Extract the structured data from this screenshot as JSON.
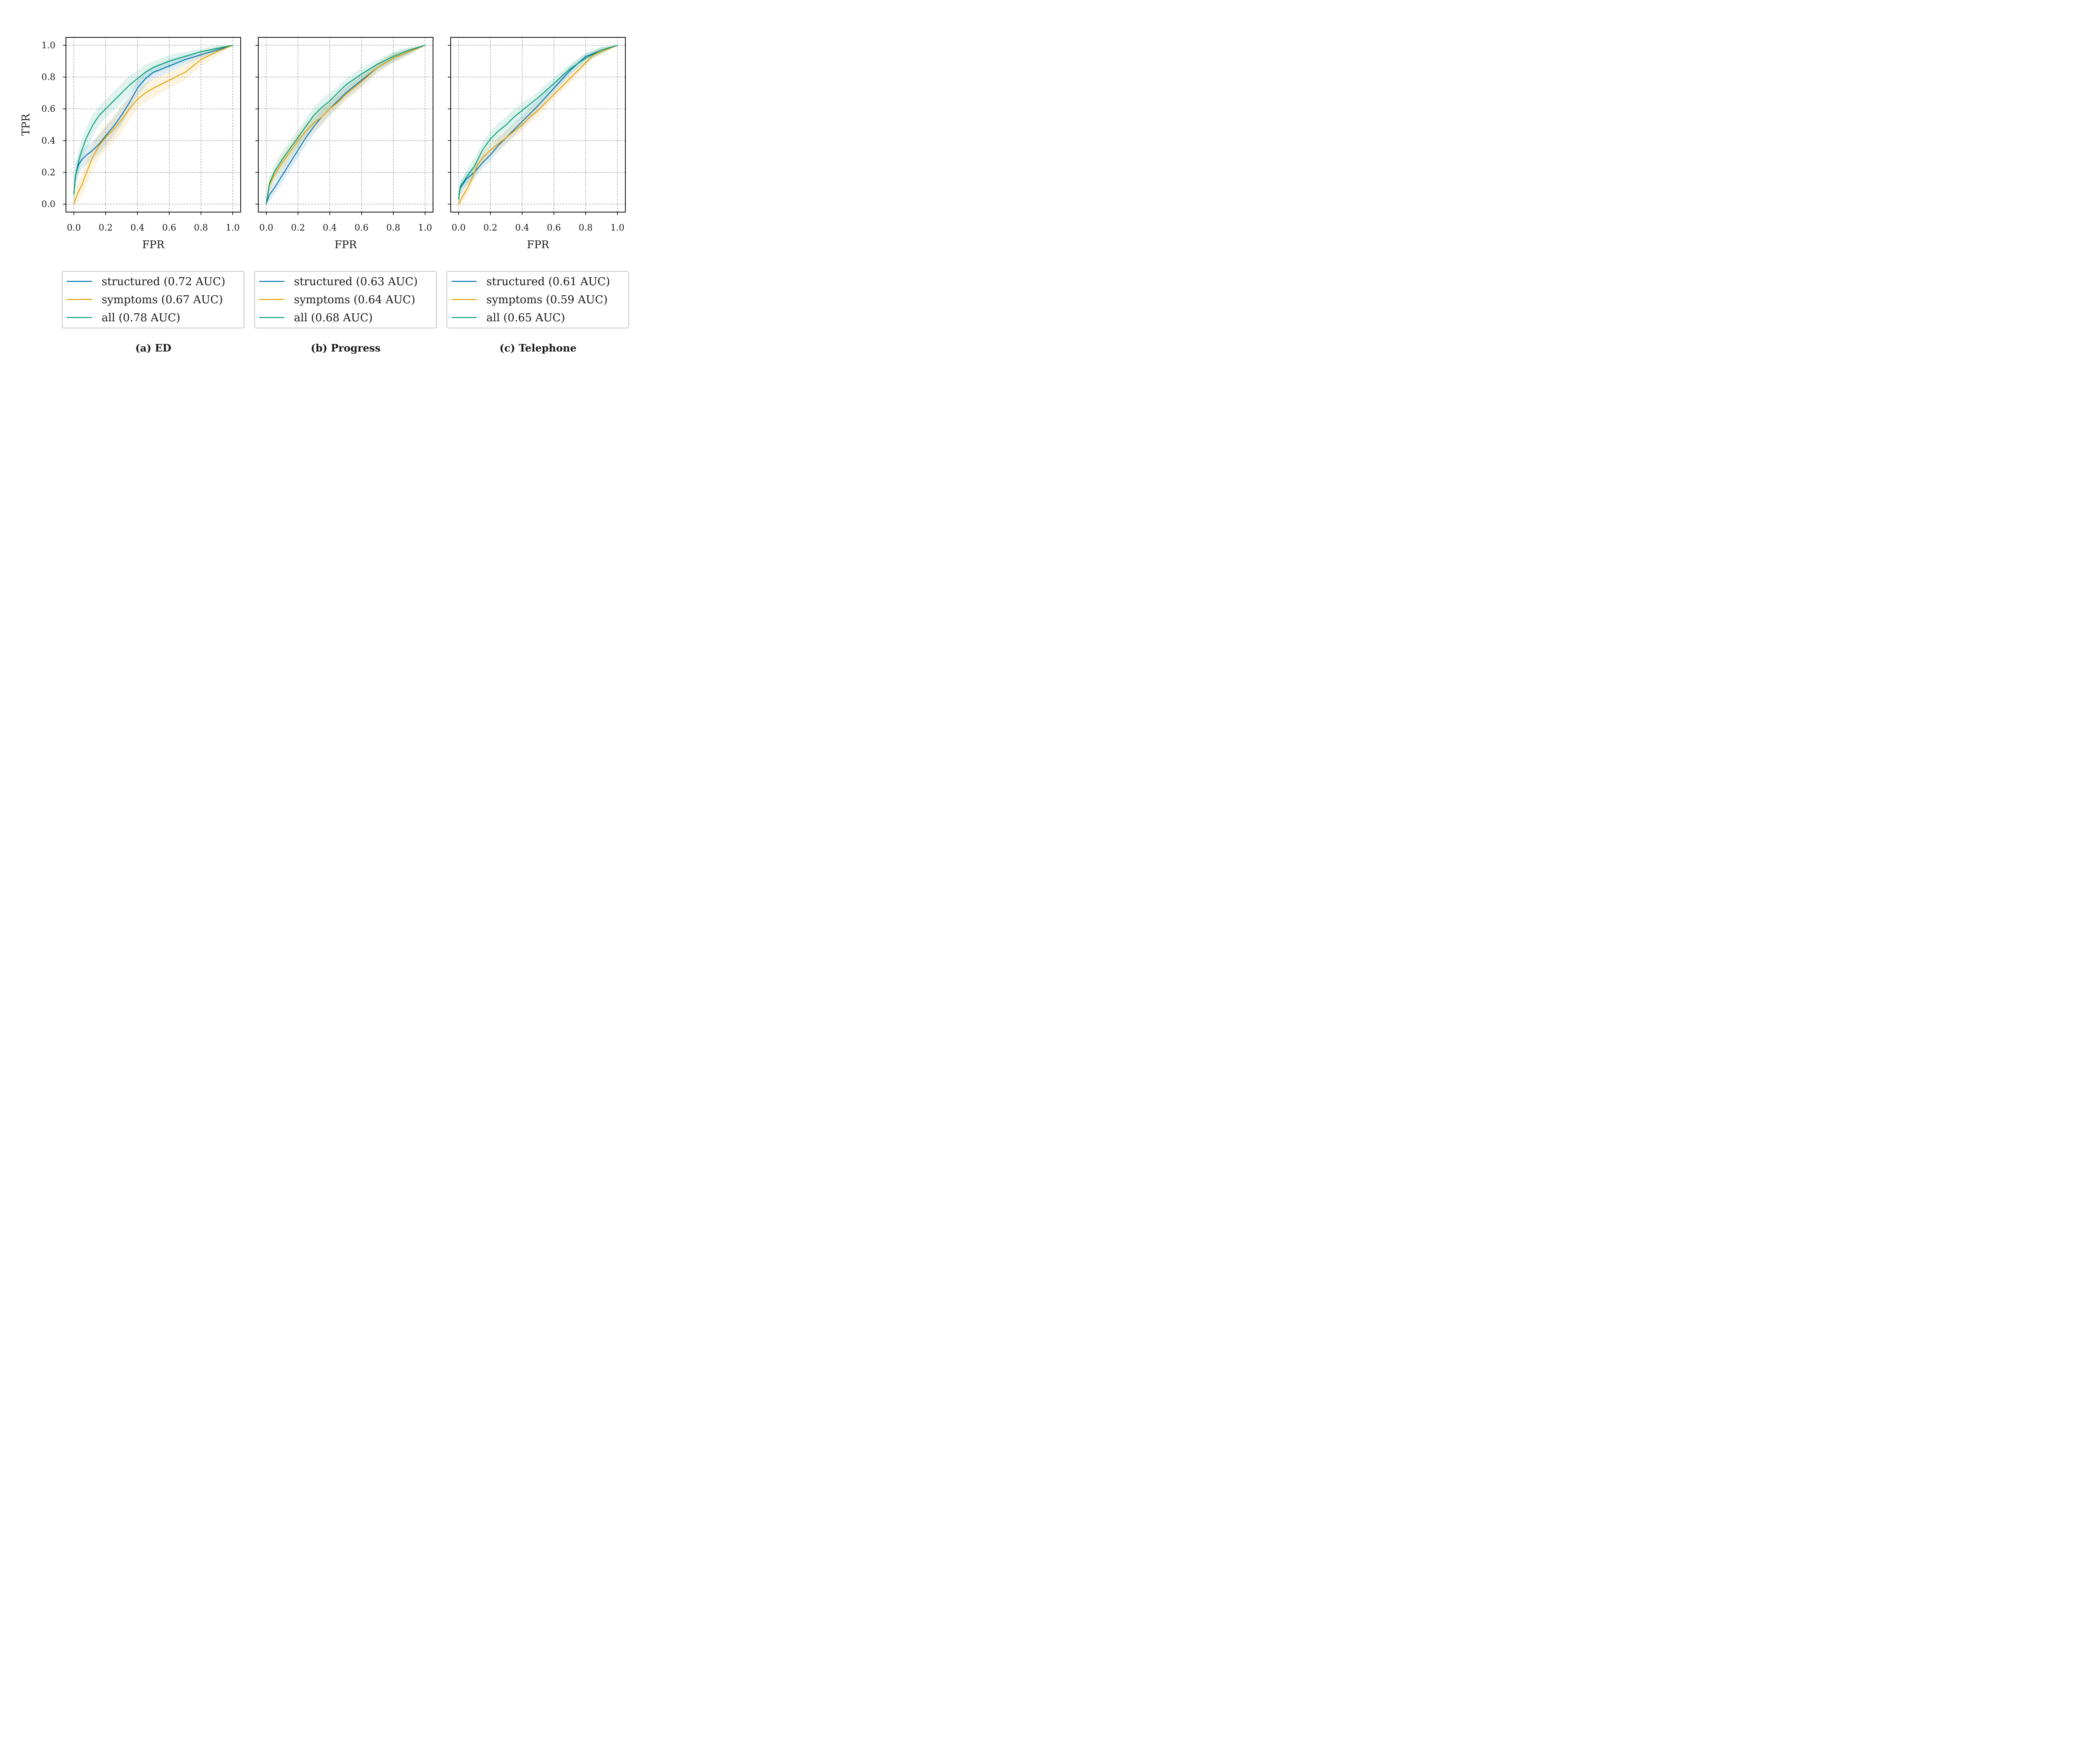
{
  "colors": {
    "structured": "#0072b2",
    "symptoms": "#e69f00",
    "all": "#009e73",
    "grid": "#808080",
    "frame": "#000000",
    "legend_border": "#cccccc"
  },
  "chart_data": [
    {
      "type": "line",
      "caption": "(a) ED",
      "xlabel": "FPR",
      "ylabel": "TPR",
      "xlim": [
        -0.05,
        1.05
      ],
      "ylim": [
        -0.05,
        1.05
      ],
      "xticks": [
        "0.0",
        "0.2",
        "0.4",
        "0.6",
        "0.8",
        "1.0"
      ],
      "yticks": [
        "0.0",
        "0.2",
        "0.4",
        "0.6",
        "0.8",
        "1.0"
      ],
      "grid": true,
      "legend_position": "below",
      "series": [
        {
          "key": "structured",
          "name": "structured (0.72 AUC)",
          "x": [
            0.0,
            0.01,
            0.03,
            0.05,
            0.08,
            0.12,
            0.16,
            0.2,
            0.25,
            0.3,
            0.35,
            0.4,
            0.45,
            0.5,
            0.6,
            0.7,
            0.8,
            0.9,
            1.0
          ],
          "y": [
            0.06,
            0.18,
            0.25,
            0.28,
            0.31,
            0.34,
            0.38,
            0.43,
            0.49,
            0.56,
            0.64,
            0.73,
            0.79,
            0.83,
            0.87,
            0.91,
            0.94,
            0.97,
            1.0
          ],
          "band": [
            0.07,
            0.06,
            0.06,
            0.06,
            0.06,
            0.06,
            0.06,
            0.06,
            0.06,
            0.06,
            0.05,
            0.05,
            0.05,
            0.04,
            0.04,
            0.03,
            0.02,
            0.02,
            0.0
          ]
        },
        {
          "key": "symptoms",
          "name": "symptoms (0.67 AUC)",
          "x": [
            0.0,
            0.02,
            0.05,
            0.08,
            0.12,
            0.16,
            0.2,
            0.25,
            0.3,
            0.35,
            0.4,
            0.45,
            0.5,
            0.6,
            0.7,
            0.8,
            0.9,
            1.0
          ],
          "y": [
            0.0,
            0.06,
            0.12,
            0.2,
            0.3,
            0.37,
            0.42,
            0.47,
            0.53,
            0.6,
            0.66,
            0.7,
            0.73,
            0.78,
            0.83,
            0.91,
            0.96,
            1.0
          ],
          "band": [
            0.04,
            0.06,
            0.07,
            0.08,
            0.08,
            0.08,
            0.08,
            0.08,
            0.08,
            0.07,
            0.06,
            0.06,
            0.06,
            0.05,
            0.05,
            0.04,
            0.03,
            0.0
          ]
        },
        {
          "key": "all",
          "name": "all (0.78 AUC)",
          "x": [
            0.0,
            0.01,
            0.03,
            0.05,
            0.08,
            0.12,
            0.16,
            0.2,
            0.25,
            0.3,
            0.35,
            0.4,
            0.45,
            0.5,
            0.6,
            0.7,
            0.8,
            0.9,
            1.0
          ],
          "y": [
            0.06,
            0.18,
            0.27,
            0.34,
            0.42,
            0.5,
            0.56,
            0.6,
            0.65,
            0.7,
            0.75,
            0.79,
            0.83,
            0.86,
            0.9,
            0.93,
            0.96,
            0.98,
            1.0
          ],
          "band": [
            0.07,
            0.07,
            0.07,
            0.07,
            0.07,
            0.07,
            0.06,
            0.06,
            0.06,
            0.06,
            0.06,
            0.05,
            0.05,
            0.04,
            0.04,
            0.03,
            0.02,
            0.02,
            0.0
          ]
        }
      ]
    },
    {
      "type": "line",
      "caption": "(b) Progress",
      "xlabel": "FPR",
      "ylabel": "",
      "xlim": [
        -0.05,
        1.05
      ],
      "ylim": [
        -0.05,
        1.05
      ],
      "xticks": [
        "0.0",
        "0.2",
        "0.4",
        "0.6",
        "0.8",
        "1.0"
      ],
      "yticks": [
        "0.0",
        "0.2",
        "0.4",
        "0.6",
        "0.8",
        "1.0"
      ],
      "grid": true,
      "legend_position": "below",
      "series": [
        {
          "key": "structured",
          "name": "structured (0.63 AUC)",
          "x": [
            0.0,
            0.02,
            0.05,
            0.1,
            0.15,
            0.2,
            0.25,
            0.3,
            0.35,
            0.4,
            0.45,
            0.5,
            0.6,
            0.7,
            0.8,
            0.9,
            1.0
          ],
          "y": [
            0.0,
            0.06,
            0.1,
            0.18,
            0.26,
            0.34,
            0.42,
            0.49,
            0.55,
            0.6,
            0.65,
            0.7,
            0.78,
            0.86,
            0.92,
            0.96,
            1.0
          ],
          "band": [
            0.03,
            0.04,
            0.04,
            0.05,
            0.05,
            0.05,
            0.05,
            0.05,
            0.05,
            0.04,
            0.04,
            0.04,
            0.04,
            0.03,
            0.03,
            0.02,
            0.0
          ]
        },
        {
          "key": "symptoms",
          "name": "symptoms (0.64 AUC)",
          "x": [
            0.0,
            0.02,
            0.05,
            0.1,
            0.15,
            0.2,
            0.25,
            0.3,
            0.35,
            0.4,
            0.45,
            0.5,
            0.6,
            0.7,
            0.8,
            0.9,
            1.0
          ],
          "y": [
            0.0,
            0.12,
            0.18,
            0.26,
            0.33,
            0.4,
            0.46,
            0.51,
            0.55,
            0.6,
            0.64,
            0.69,
            0.77,
            0.86,
            0.92,
            0.96,
            1.0
          ],
          "band": [
            0.03,
            0.04,
            0.04,
            0.05,
            0.05,
            0.05,
            0.05,
            0.05,
            0.05,
            0.04,
            0.04,
            0.04,
            0.04,
            0.03,
            0.03,
            0.02,
            0.0
          ]
        },
        {
          "key": "all",
          "name": "all (0.68 AUC)",
          "x": [
            0.0,
            0.02,
            0.05,
            0.1,
            0.15,
            0.2,
            0.25,
            0.3,
            0.35,
            0.4,
            0.45,
            0.5,
            0.6,
            0.7,
            0.8,
            0.9,
            1.0
          ],
          "y": [
            0.0,
            0.13,
            0.2,
            0.28,
            0.35,
            0.42,
            0.49,
            0.56,
            0.61,
            0.65,
            0.7,
            0.75,
            0.82,
            0.88,
            0.93,
            0.97,
            1.0
          ],
          "band": [
            0.03,
            0.04,
            0.05,
            0.05,
            0.05,
            0.05,
            0.05,
            0.05,
            0.05,
            0.05,
            0.04,
            0.04,
            0.04,
            0.03,
            0.03,
            0.02,
            0.0
          ]
        }
      ]
    },
    {
      "type": "line",
      "caption": "(c) Telephone",
      "xlabel": "FPR",
      "ylabel": "",
      "xlim": [
        -0.05,
        1.05
      ],
      "ylim": [
        -0.05,
        1.05
      ],
      "xticks": [
        "0.0",
        "0.2",
        "0.4",
        "0.6",
        "0.8",
        "1.0"
      ],
      "yticks": [
        "0.0",
        "0.2",
        "0.4",
        "0.6",
        "0.8",
        "1.0"
      ],
      "grid": true,
      "legend_position": "below",
      "series": [
        {
          "key": "structured",
          "name": "structured (0.61 AUC)",
          "x": [
            0.0,
            0.01,
            0.03,
            0.05,
            0.1,
            0.15,
            0.2,
            0.25,
            0.3,
            0.35,
            0.4,
            0.45,
            0.5,
            0.6,
            0.7,
            0.8,
            0.9,
            1.0
          ],
          "y": [
            0.03,
            0.1,
            0.13,
            0.16,
            0.2,
            0.26,
            0.31,
            0.37,
            0.42,
            0.47,
            0.52,
            0.57,
            0.62,
            0.73,
            0.84,
            0.93,
            0.97,
            1.0
          ],
          "band": [
            0.03,
            0.04,
            0.04,
            0.04,
            0.04,
            0.04,
            0.04,
            0.04,
            0.04,
            0.04,
            0.04,
            0.04,
            0.04,
            0.03,
            0.03,
            0.02,
            0.02,
            0.0
          ]
        },
        {
          "key": "symptoms",
          "name": "symptoms (0.59 AUC)",
          "x": [
            0.0,
            0.02,
            0.05,
            0.08,
            0.12,
            0.16,
            0.2,
            0.25,
            0.3,
            0.35,
            0.4,
            0.45,
            0.5,
            0.6,
            0.7,
            0.8,
            0.85,
            0.9,
            1.0
          ],
          "y": [
            0.0,
            0.04,
            0.09,
            0.15,
            0.25,
            0.3,
            0.34,
            0.38,
            0.42,
            0.46,
            0.5,
            0.55,
            0.59,
            0.69,
            0.79,
            0.89,
            0.94,
            0.96,
            1.0
          ],
          "band": [
            0.03,
            0.04,
            0.04,
            0.04,
            0.04,
            0.04,
            0.04,
            0.04,
            0.04,
            0.04,
            0.04,
            0.04,
            0.04,
            0.03,
            0.03,
            0.02,
            0.02,
            0.02,
            0.0
          ]
        },
        {
          "key": "all",
          "name": "all (0.65 AUC)",
          "x": [
            0.0,
            0.01,
            0.03,
            0.05,
            0.1,
            0.15,
            0.2,
            0.25,
            0.3,
            0.35,
            0.4,
            0.45,
            0.5,
            0.6,
            0.7,
            0.8,
            0.9,
            1.0
          ],
          "y": [
            0.03,
            0.11,
            0.14,
            0.17,
            0.24,
            0.34,
            0.41,
            0.46,
            0.5,
            0.55,
            0.59,
            0.63,
            0.67,
            0.76,
            0.85,
            0.92,
            0.97,
            1.0
          ],
          "band": [
            0.03,
            0.04,
            0.04,
            0.05,
            0.05,
            0.05,
            0.05,
            0.05,
            0.05,
            0.05,
            0.05,
            0.04,
            0.04,
            0.04,
            0.03,
            0.03,
            0.02,
            0.0
          ]
        }
      ]
    }
  ]
}
